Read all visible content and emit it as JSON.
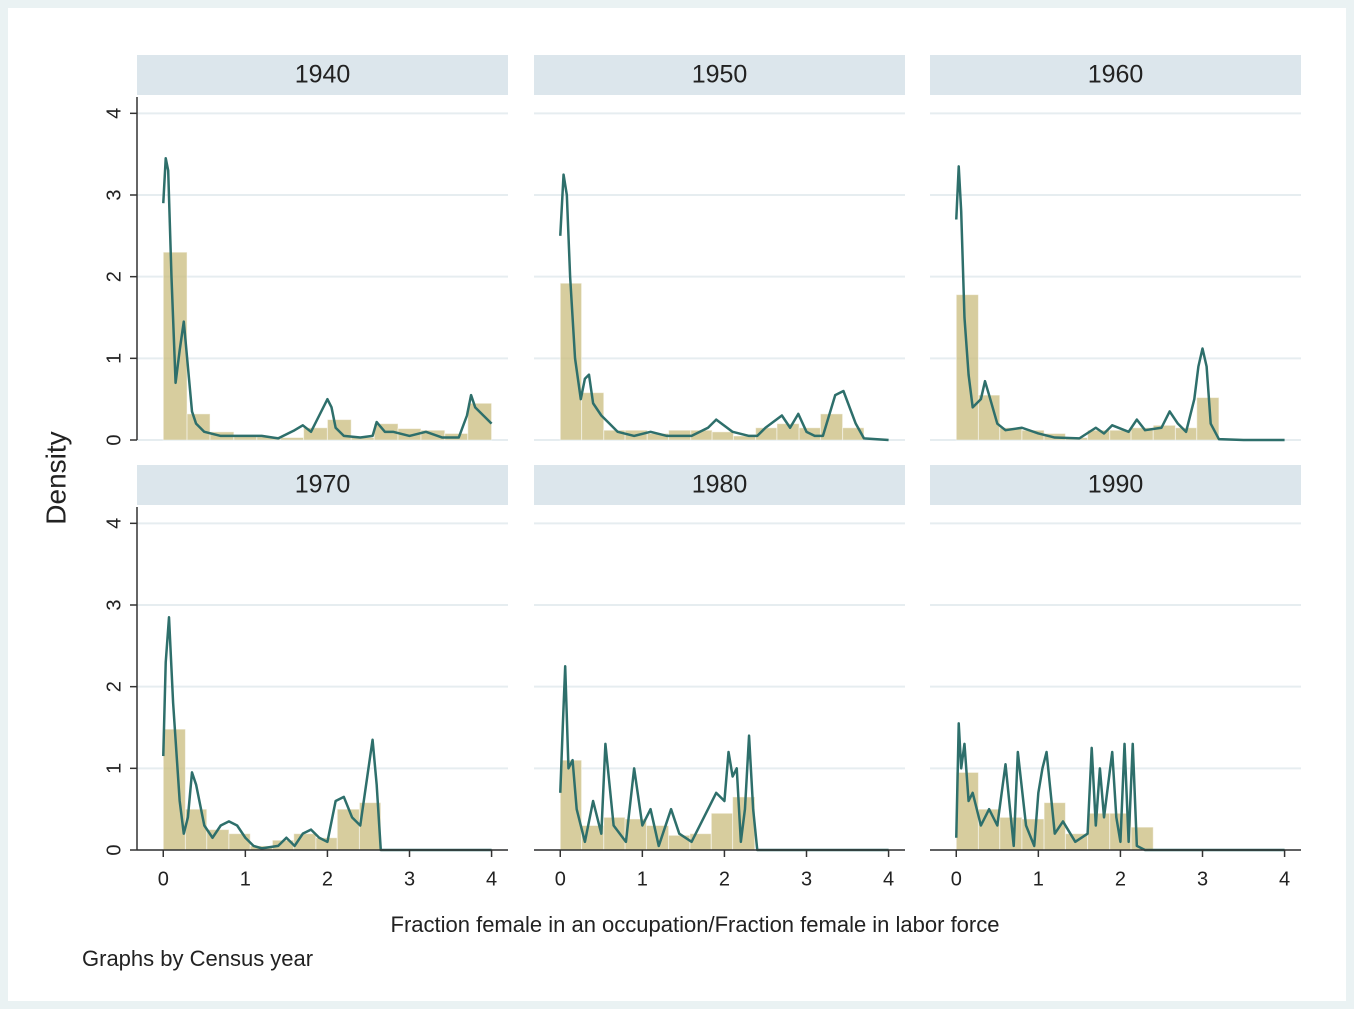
{
  "y_label": "Density",
  "x_label": "Fraction female in an occupation/Fraction female in labor force",
  "note": "Graphs by Census year",
  "chart_data": [
    {
      "type": "histogram",
      "title": "1940",
      "color": "#c9bc7e",
      "line_color": "#2e6f6b",
      "bins": [
        0,
        0.29,
        0.57,
        0.86,
        1.14,
        1.43,
        1.71,
        2,
        2.29,
        2.57,
        2.86,
        3.14,
        3.43,
        3.71,
        4
      ],
      "values": [
        2.3,
        0.32,
        0.1,
        0.05,
        0.04,
        0.03,
        0.15,
        0.25,
        0.03,
        0.2,
        0.14,
        0.12,
        0.08,
        0.45
      ],
      "density": {
        "x": [
          0,
          0.03,
          0.06,
          0.1,
          0.15,
          0.2,
          0.25,
          0.3,
          0.35,
          0.4,
          0.5,
          0.7,
          1,
          1.2,
          1.4,
          1.6,
          1.7,
          1.8,
          1.9,
          2,
          2.05,
          2.1,
          2.2,
          2.4,
          2.55,
          2.6,
          2.7,
          2.8,
          3,
          3.2,
          3.4,
          3.6,
          3.7,
          3.75,
          3.8,
          3.9,
          4
        ],
        "values": [
          2.9,
          3.45,
          3.3,
          2,
          0.7,
          1.1,
          1.45,
          0.9,
          0.35,
          0.2,
          0.1,
          0.05,
          0.05,
          0.05,
          0.02,
          0.12,
          0.18,
          0.1,
          0.3,
          0.5,
          0.4,
          0.15,
          0.05,
          0.03,
          0.05,
          0.22,
          0.1,
          0.1,
          0.05,
          0.1,
          0.03,
          0.03,
          0.3,
          0.55,
          0.4,
          0.3,
          0.2
        ]
      },
      "xlim": [
        -0.32,
        4.2
      ],
      "ylim": [
        0,
        4.2
      ],
      "xticks": [
        0,
        1,
        2,
        3,
        4
      ],
      "yticks": [
        0,
        1,
        2,
        3,
        4
      ],
      "grid": true
    },
    {
      "type": "histogram",
      "title": "1950",
      "color": "#c9bc7e",
      "line_color": "#2e6f6b",
      "bins": [
        0,
        0.26,
        0.53,
        0.79,
        1.06,
        1.32,
        1.59,
        1.85,
        2.11,
        2.38,
        2.64,
        2.91,
        3.17,
        3.44,
        3.7
      ],
      "values": [
        1.92,
        0.58,
        0.12,
        0.12,
        0.08,
        0.12,
        0.12,
        0.1,
        0.05,
        0.15,
        0.2,
        0.15,
        0.32,
        0.15
      ],
      "density": {
        "x": [
          0,
          0.04,
          0.08,
          0.12,
          0.18,
          0.25,
          0.3,
          0.35,
          0.4,
          0.5,
          0.6,
          0.7,
          0.9,
          1.1,
          1.3,
          1.6,
          1.8,
          1.9,
          2.1,
          2.3,
          2.4,
          2.5,
          2.7,
          2.8,
          2.9,
          3,
          3.1,
          3.2,
          3.35,
          3.45,
          3.6,
          3.7,
          4
        ],
        "values": [
          2.5,
          3.25,
          3,
          2,
          1,
          0.5,
          0.75,
          0.8,
          0.45,
          0.3,
          0.2,
          0.1,
          0.05,
          0.1,
          0.05,
          0.05,
          0.15,
          0.25,
          0.1,
          0.05,
          0.05,
          0.15,
          0.3,
          0.15,
          0.32,
          0.1,
          0.05,
          0.05,
          0.55,
          0.6,
          0.2,
          0.02,
          0
        ]
      },
      "xlim": [
        -0.32,
        4.2
      ],
      "ylim": [
        0,
        4.2
      ],
      "xticks": [
        0,
        1,
        2,
        3,
        4
      ],
      "yticks": [
        0,
        1,
        2,
        3,
        4
      ],
      "grid": true
    },
    {
      "type": "histogram",
      "title": "1960",
      "color": "#c9bc7e",
      "line_color": "#2e6f6b",
      "bins": [
        0,
        0.27,
        0.53,
        0.8,
        1.07,
        1.33,
        1.6,
        1.87,
        2.13,
        2.4,
        2.67,
        2.93,
        3.2
      ],
      "values": [
        1.78,
        0.55,
        0.15,
        0.12,
        0.08,
        0.03,
        0.12,
        0.12,
        0.15,
        0.18,
        0.15,
        0.52
      ],
      "density": {
        "x": [
          0,
          0.03,
          0.06,
          0.1,
          0.15,
          0.2,
          0.3,
          0.35,
          0.4,
          0.5,
          0.6,
          0.8,
          1,
          1.2,
          1.5,
          1.7,
          1.8,
          1.9,
          2.1,
          2.2,
          2.3,
          2.5,
          2.6,
          2.7,
          2.8,
          2.9,
          2.95,
          3,
          3.05,
          3.1,
          3.2,
          3.5,
          4
        ],
        "values": [
          2.7,
          3.35,
          2.8,
          1.5,
          0.8,
          0.4,
          0.5,
          0.72,
          0.55,
          0.2,
          0.12,
          0.15,
          0.08,
          0.03,
          0.02,
          0.15,
          0.08,
          0.18,
          0.1,
          0.25,
          0.12,
          0.15,
          0.35,
          0.2,
          0.1,
          0.5,
          0.9,
          1.12,
          0.9,
          0.2,
          0.01,
          0,
          0
        ]
      },
      "xlim": [
        -0.32,
        4.2
      ],
      "ylim": [
        0,
        4.2
      ],
      "xticks": [
        0,
        1,
        2,
        3,
        4
      ],
      "yticks": [
        0,
        1,
        2,
        3,
        4
      ],
      "grid": true
    },
    {
      "type": "histogram",
      "title": "1970",
      "color": "#c9bc7e",
      "line_color": "#2e6f6b",
      "bins": [
        0,
        0.27,
        0.53,
        0.8,
        1.06,
        1.33,
        1.59,
        1.86,
        2.12,
        2.39,
        2.65
      ],
      "values": [
        1.48,
        0.5,
        0.25,
        0.2,
        0.05,
        0.12,
        0.2,
        0.15,
        0.5,
        0.58
      ],
      "density": {
        "x": [
          0,
          0.03,
          0.07,
          0.12,
          0.2,
          0.25,
          0.3,
          0.35,
          0.4,
          0.5,
          0.6,
          0.7,
          0.8,
          0.9,
          1,
          1.1,
          1.2,
          1.4,
          1.5,
          1.6,
          1.7,
          1.8,
          1.9,
          2,
          2.1,
          2.2,
          2.3,
          2.4,
          2.5,
          2.55,
          2.6,
          2.65,
          3,
          4
        ],
        "values": [
          1.15,
          2.3,
          2.85,
          1.8,
          0.6,
          0.2,
          0.4,
          0.95,
          0.8,
          0.3,
          0.15,
          0.3,
          0.35,
          0.3,
          0.15,
          0.05,
          0.02,
          0.05,
          0.15,
          0.05,
          0.2,
          0.25,
          0.15,
          0.1,
          0.6,
          0.65,
          0.4,
          0.3,
          1,
          1.35,
          0.8,
          0,
          0,
          0
        ]
      },
      "xlim": [
        -0.32,
        4.2
      ],
      "ylim": [
        0,
        4.2
      ],
      "xticks": [
        0,
        1,
        2,
        3,
        4
      ],
      "yticks": [
        0,
        1,
        2,
        3,
        4
      ],
      "grid": true
    },
    {
      "type": "histogram",
      "title": "1980",
      "color": "#c9bc7e",
      "line_color": "#2e6f6b",
      "bins": [
        0,
        0.26,
        0.53,
        0.79,
        1.05,
        1.32,
        1.58,
        1.84,
        2.1,
        2.37
      ],
      "values": [
        1.1,
        0.3,
        0.4,
        0.38,
        0.3,
        0.18,
        0.2,
        0.45,
        0.65
      ],
      "density": {
        "x": [
          0,
          0.03,
          0.06,
          0.1,
          0.15,
          0.2,
          0.3,
          0.4,
          0.5,
          0.55,
          0.65,
          0.8,
          0.9,
          1,
          1.1,
          1.2,
          1.35,
          1.45,
          1.6,
          1.8,
          1.9,
          2,
          2.05,
          2.1,
          2.15,
          2.2,
          2.25,
          2.3,
          2.35,
          2.4,
          3,
          4
        ],
        "values": [
          0.7,
          1.5,
          2.25,
          1,
          1.1,
          0.5,
          0.1,
          0.6,
          0.2,
          1.3,
          0.3,
          0.1,
          1,
          0.3,
          0.5,
          0.05,
          0.5,
          0.2,
          0.1,
          0.5,
          0.7,
          0.6,
          1.2,
          0.9,
          1,
          0.1,
          0.5,
          1.4,
          0.5,
          0,
          0,
          0
        ]
      },
      "xlim": [
        -0.32,
        4.2
      ],
      "ylim": [
        0,
        4.2
      ],
      "xticks": [
        0,
        1,
        2,
        3,
        4
      ],
      "yticks": [
        0,
        1,
        2,
        3,
        4
      ],
      "grid": true
    },
    {
      "type": "histogram",
      "title": "1990",
      "color": "#c9bc7e",
      "line_color": "#2e6f6b",
      "bins": [
        0,
        0.27,
        0.53,
        0.8,
        1.07,
        1.33,
        1.6,
        1.87,
        2.13,
        2.4
      ],
      "values": [
        0.95,
        0.5,
        0.4,
        0.38,
        0.58,
        0.2,
        0.45,
        0.45,
        0.28
      ],
      "density": {
        "x": [
          0,
          0.03,
          0.06,
          0.1,
          0.15,
          0.2,
          0.3,
          0.4,
          0.5,
          0.6,
          0.7,
          0.75,
          0.85,
          0.95,
          1,
          1.05,
          1.1,
          1.2,
          1.3,
          1.45,
          1.6,
          1.65,
          1.7,
          1.75,
          1.8,
          1.9,
          1.95,
          2,
          2.05,
          2.1,
          2.15,
          2.2,
          2.3,
          3,
          4
        ],
        "values": [
          0.15,
          1.55,
          1,
          1.3,
          0.6,
          0.7,
          0.3,
          0.5,
          0.3,
          1.05,
          0.05,
          1.2,
          0.3,
          0.05,
          0.7,
          1,
          1.2,
          0.2,
          0.35,
          0.1,
          0.2,
          1.25,
          0.3,
          1,
          0.4,
          1.2,
          0.4,
          0.1,
          1.3,
          0.1,
          1.3,
          0.05,
          0,
          0,
          0
        ]
      },
      "xlim": [
        -0.32,
        4.2
      ],
      "ylim": [
        0,
        4.2
      ],
      "xticks": [
        0,
        1,
        2,
        3,
        4
      ],
      "yticks": [
        0,
        1,
        2,
        3,
        4
      ],
      "grid": true
    }
  ]
}
